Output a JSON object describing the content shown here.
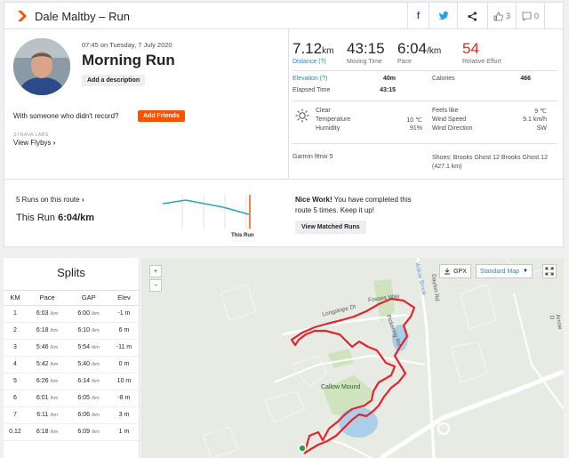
{
  "header": {
    "title": "Dale Maltby – Run",
    "kudos_count": "3",
    "comment_count": "0"
  },
  "activity": {
    "datetime": "07:45 on Tuesday, 7 July 2020",
    "name": "Morning Run",
    "add_description_label": "Add a description",
    "someone_text": "With someone who didn't record?",
    "add_friends_label": "Add Friends",
    "labs_label": "STRAVA LABS",
    "flybys_label": "View Flybys"
  },
  "stats": {
    "distance": {
      "value": "7.12",
      "unit": "km",
      "label": "Distance (?)"
    },
    "moving_time": {
      "value": "43:15",
      "label": "Moving Time"
    },
    "pace": {
      "value": "6:04",
      "unit": "/km",
      "label": "Pace"
    },
    "relative_effort": {
      "value": "54",
      "label": "Relative Effort"
    },
    "elevation": {
      "label": "Elevation (?)",
      "value": "40m"
    },
    "calories": {
      "label": "Calories",
      "value": "466"
    },
    "elapsed_time": {
      "label": "Elapsed Time",
      "value": "43:15"
    }
  },
  "weather": {
    "condition": "Clear",
    "temperature": {
      "label": "Temperature",
      "value": "10 ℃"
    },
    "humidity": {
      "label": "Humidity",
      "value": "91%"
    },
    "feels_like": {
      "label": "Feels like",
      "value": "9 ℃"
    },
    "wind_speed": {
      "label": "Wind Speed",
      "value": "9.1 km/h"
    },
    "wind_direction": {
      "label": "Wind Direction",
      "value": "SW"
    }
  },
  "gear": {
    "device": "Garmin fēnix 5",
    "shoes": "Shoes: Brooks Ghost 12 Brooks Ghost 12 (427.1 km)"
  },
  "routes": {
    "link_label": "5 Runs on this route",
    "this_run_label": "This Run",
    "this_run_pace": "6:04/km",
    "chart_marker_label": "This Run",
    "nice_work_bold": "Nice Work!",
    "nice_work_text": "You have completed this route 5 times. Keep it up!",
    "view_matched_label": "View Matched Runs"
  },
  "splits": {
    "title": "Splits",
    "columns": [
      "KM",
      "Pace",
      "GAP",
      "Elev"
    ],
    "unit": "/km",
    "rows": [
      [
        "1",
        "6:03",
        "6:00",
        "-1 m"
      ],
      [
        "2",
        "6:18",
        "6:10",
        "6 m"
      ],
      [
        "3",
        "5:46",
        "5:54",
        "-11 m"
      ],
      [
        "4",
        "5:42",
        "5:40",
        "0 m"
      ],
      [
        "5",
        "6:26",
        "6:14",
        "10 m"
      ],
      [
        "6",
        "6:01",
        "6:05",
        "-8 m"
      ],
      [
        "7",
        "6:11",
        "6:06",
        "3 m"
      ],
      [
        "0.12",
        "6:18",
        "6:09",
        "1 m"
      ]
    ]
  },
  "map": {
    "zoom_in": "+",
    "zoom_out": "−",
    "gpx_label": "GPX",
    "map_style": "Standard Map",
    "labels": {
      "road1": "Longstripe Dr",
      "road2": "Fosses Way",
      "road3": "Dayton Rd",
      "road4": "Arrow D",
      "road5": "Pickering Rd",
      "brook": "Willow Brook",
      "park": "Callow Mound"
    }
  },
  "colors": {
    "brand": "#fc5200",
    "link": "#2785c8",
    "effort": "#d62d20",
    "route": "#e3242b"
  }
}
